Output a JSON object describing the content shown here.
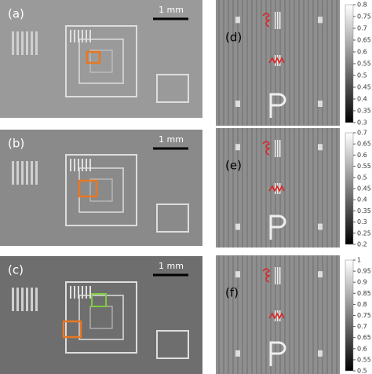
{
  "panels": [
    {
      "label": "(a)",
      "scale_bar": "1 mm"
    },
    {
      "label": "(b)",
      "scale_bar": "1 mm"
    },
    {
      "label": "(c)",
      "scale_bar": "1 mm"
    }
  ],
  "colorbars": [
    {
      "label": "(d)",
      "lim": [
        0.3,
        0.8
      ],
      "ticks": [
        0.8,
        0.75,
        0.7,
        0.65,
        0.6,
        0.55,
        0.5,
        0.45,
        0.4,
        0.35,
        0.3
      ]
    },
    {
      "label": "(e)",
      "lim": [
        0.2,
        0.7
      ],
      "ticks": [
        0.7,
        0.65,
        0.6,
        0.55,
        0.5,
        0.45,
        0.4,
        0.35,
        0.3,
        0.25,
        0.2
      ]
    },
    {
      "label": "(f)",
      "lim": [
        0.5,
        1
      ],
      "ticks": [
        1,
        0.95,
        0.9,
        0.85,
        0.8,
        0.75,
        0.7,
        0.65,
        0.6,
        0.55,
        0.5
      ]
    }
  ]
}
